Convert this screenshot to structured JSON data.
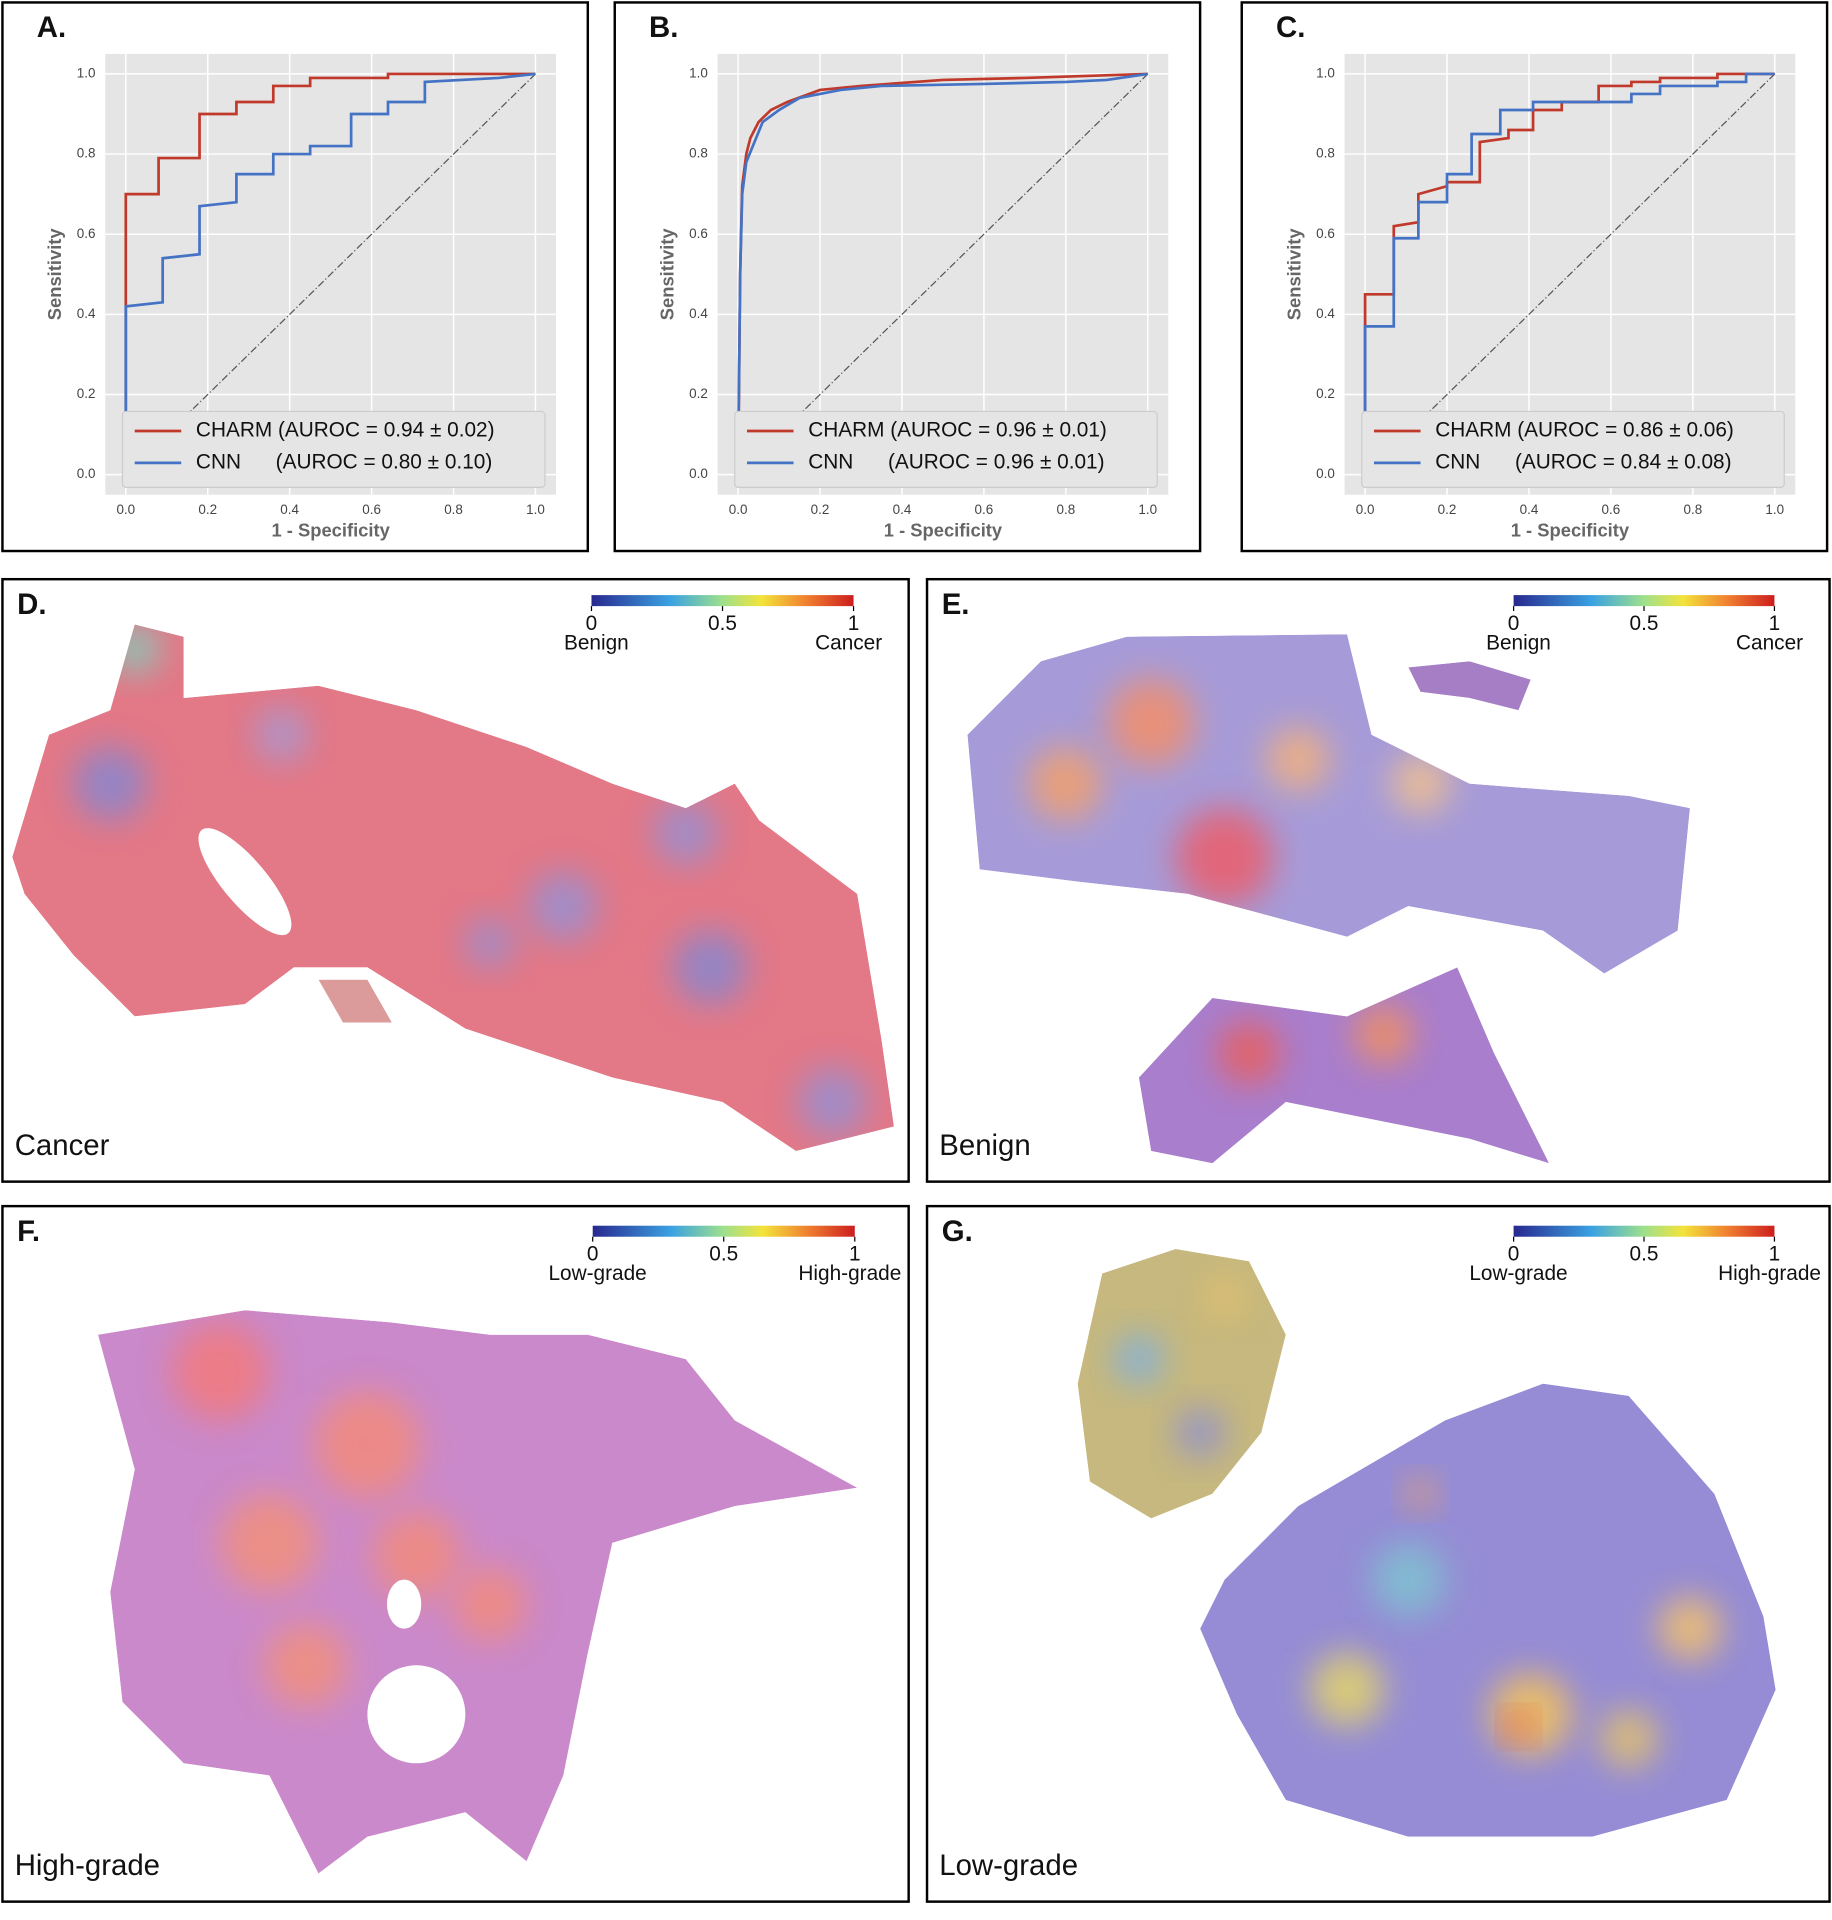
{
  "chart_data": [
    {
      "type": "line",
      "label": "A.",
      "xlabel": "1 - Specificity",
      "ylabel": "Sensitivity",
      "xlim": [
        -0.05,
        1.05
      ],
      "ylim": [
        -0.05,
        1.05
      ],
      "xticks": [
        {
          "value": 0,
          "label": "0.0"
        },
        0.2,
        0.4,
        0.6,
        0.8,
        {
          "value": 1,
          "label": "1.0"
        }
      ],
      "yticks": [
        {
          "value": 0,
          "label": "0.0"
        },
        0.2,
        0.4,
        0.6,
        0.8,
        {
          "value": 1,
          "label": "1.0"
        }
      ],
      "grid": true,
      "series": [
        {
          "name": "CHARM (AUROC = 0.94 ± 0.02)",
          "color": "#c0392b",
          "x": [
            0,
            0,
            0.08,
            0.08,
            0.18,
            0.18,
            0.27,
            0.27,
            0.36,
            0.36,
            0.45,
            0.45,
            0.64,
            0.64,
            1
          ],
          "values": [
            0,
            0.7,
            0.7,
            0.79,
            0.79,
            0.9,
            0.9,
            0.93,
            0.93,
            0.97,
            0.97,
            0.99,
            0.99,
            1,
            1
          ]
        },
        {
          "name": "CNN      (AUROC = 0.80 ± 0.10)",
          "color": "#4472c4",
          "x": [
            0,
            0,
            0.09,
            0.09,
            0.18,
            0.18,
            0.27,
            0.27,
            0.36,
            0.36,
            0.45,
            0.45,
            0.55,
            0.55,
            0.64,
            0.64,
            0.73,
            0.73,
            0.91,
            1
          ],
          "values": [
            0,
            0.42,
            0.43,
            0.54,
            0.55,
            0.67,
            0.68,
            0.75,
            0.75,
            0.8,
            0.8,
            0.82,
            0.82,
            0.9,
            0.9,
            0.93,
            0.93,
            0.98,
            0.99,
            1
          ]
        }
      ]
    },
    {
      "type": "line",
      "label": "B.",
      "xlabel": "1 - Specificity",
      "ylabel": "Sensitivity",
      "xlim": [
        -0.05,
        1.05
      ],
      "ylim": [
        -0.05,
        1.05
      ],
      "xticks": [
        {
          "value": 0,
          "label": "0.0"
        },
        0.2,
        0.4,
        0.6,
        0.8,
        {
          "value": 1,
          "label": "1.0"
        }
      ],
      "yticks": [
        {
          "value": 0,
          "label": "0.0"
        },
        0.2,
        0.4,
        0.6,
        0.8,
        {
          "value": 1,
          "label": "1.0"
        }
      ],
      "grid": true,
      "series": [
        {
          "name": "CHARM (AUROC = 0.96 ± 0.01)",
          "color": "#c0392b",
          "x": [
            0,
            0.005,
            0.01,
            0.02,
            0.03,
            0.05,
            0.08,
            0.12,
            0.2,
            0.3,
            0.5,
            0.7,
            1
          ],
          "values": [
            0,
            0.5,
            0.72,
            0.8,
            0.84,
            0.88,
            0.91,
            0.93,
            0.96,
            0.97,
            0.985,
            0.99,
            1
          ]
        },
        {
          "name": "CNN      (AUROC = 0.96 ± 0.01)",
          "color": "#4472c4",
          "x": [
            0,
            0.005,
            0.01,
            0.02,
            0.04,
            0.06,
            0.1,
            0.15,
            0.25,
            0.35,
            0.6,
            0.8,
            0.9,
            1
          ],
          "values": [
            0,
            0.5,
            0.7,
            0.78,
            0.83,
            0.88,
            0.91,
            0.94,
            0.96,
            0.97,
            0.975,
            0.98,
            0.985,
            1
          ]
        }
      ]
    },
    {
      "type": "line",
      "label": "C.",
      "xlabel": "1 - Specificity",
      "ylabel": "Sensitivity",
      "xlim": [
        -0.05,
        1.05
      ],
      "ylim": [
        -0.05,
        1.05
      ],
      "xticks": [
        {
          "value": 0,
          "label": "0.0"
        },
        0.2,
        0.4,
        0.6,
        0.8,
        {
          "value": 1,
          "label": "1.0"
        }
      ],
      "yticks": [
        {
          "value": 0,
          "label": "0.0"
        },
        0.2,
        0.4,
        0.6,
        0.8,
        {
          "value": 1,
          "label": "1.0"
        }
      ],
      "grid": true,
      "series": [
        {
          "name": "CHARM (AUROC = 0.86 ± 0.06)",
          "color": "#c0392b",
          "x": [
            0,
            0,
            0.07,
            0.07,
            0.13,
            0.13,
            0.2,
            0.2,
            0.28,
            0.28,
            0.35,
            0.35,
            0.41,
            0.41,
            0.48,
            0.48,
            0.57,
            0.57,
            0.65,
            0.65,
            0.72,
            0.72,
            0.86,
            0.86,
            1
          ],
          "values": [
            0,
            0.45,
            0.45,
            0.62,
            0.63,
            0.7,
            0.72,
            0.73,
            0.73,
            0.83,
            0.84,
            0.86,
            0.86,
            0.91,
            0.91,
            0.93,
            0.93,
            0.97,
            0.97,
            0.98,
            0.98,
            0.99,
            0.99,
            1,
            1
          ]
        },
        {
          "name": "CNN      (AUROC = 0.84 ± 0.08)",
          "color": "#4472c4",
          "x": [
            0,
            0,
            0.07,
            0.07,
            0.13,
            0.13,
            0.2,
            0.2,
            0.26,
            0.26,
            0.33,
            0.33,
            0.41,
            0.41,
            0.65,
            0.65,
            0.72,
            0.72,
            0.86,
            0.86,
            0.93,
            0.93,
            1
          ],
          "values": [
            0,
            0.37,
            0.37,
            0.59,
            0.59,
            0.68,
            0.68,
            0.75,
            0.75,
            0.85,
            0.85,
            0.91,
            0.91,
            0.93,
            0.93,
            0.95,
            0.95,
            0.97,
            0.97,
            0.98,
            0.98,
            1,
            1
          ]
        }
      ]
    },
    {
      "type": "heatmap",
      "label": "D.",
      "caption": "Cancer",
      "clim": [
        0,
        1
      ],
      "cticks": [
        0,
        0.5,
        1
      ],
      "low_label": "Benign",
      "high_label": "Cancer"
    },
    {
      "type": "heatmap",
      "label": "E.",
      "caption": "Benign",
      "clim": [
        0,
        1
      ],
      "cticks": [
        0,
        0.5,
        1
      ],
      "low_label": "Benign",
      "high_label": "Cancer"
    },
    {
      "type": "heatmap",
      "label": "F.",
      "caption": "High-grade",
      "clim": [
        0,
        1
      ],
      "cticks": [
        0,
        0.5,
        1
      ],
      "low_label": "Low-grade",
      "high_label": "High-grade"
    },
    {
      "type": "heatmap",
      "label": "G.",
      "caption": "Low-grade",
      "clim": [
        0,
        1
      ],
      "cticks": [
        0,
        0.5,
        1
      ],
      "low_label": "Low-grade",
      "high_label": "High-grade"
    }
  ]
}
